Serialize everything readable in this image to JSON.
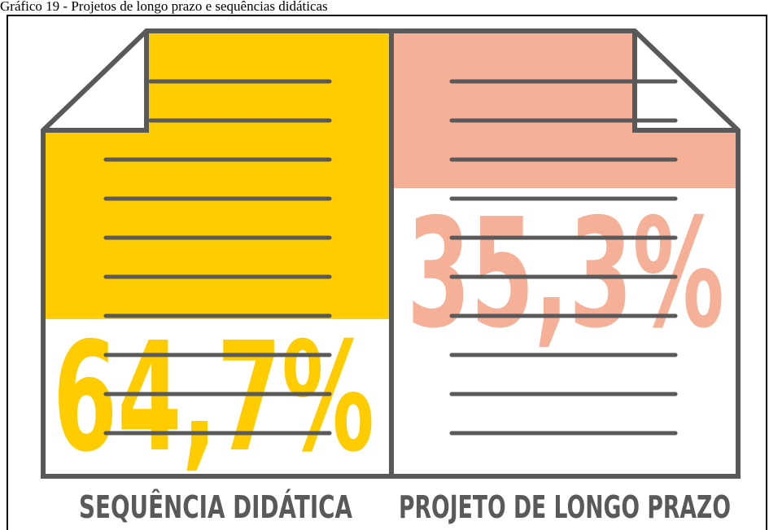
{
  "chart_data": {
    "type": "pictogram",
    "title": "Gráfico 19 - Projetos de longo prazo e sequências didáticas",
    "categories": [
      "SEQUÊNCIA DIDÁTICA",
      "PROJETO DE LONGO PRAZO"
    ],
    "values": [
      64.7,
      35.3
    ],
    "value_labels": [
      "64,7%",
      "35,3%"
    ],
    "colors": [
      "#ffcc00",
      "#f5b097"
    ]
  }
}
